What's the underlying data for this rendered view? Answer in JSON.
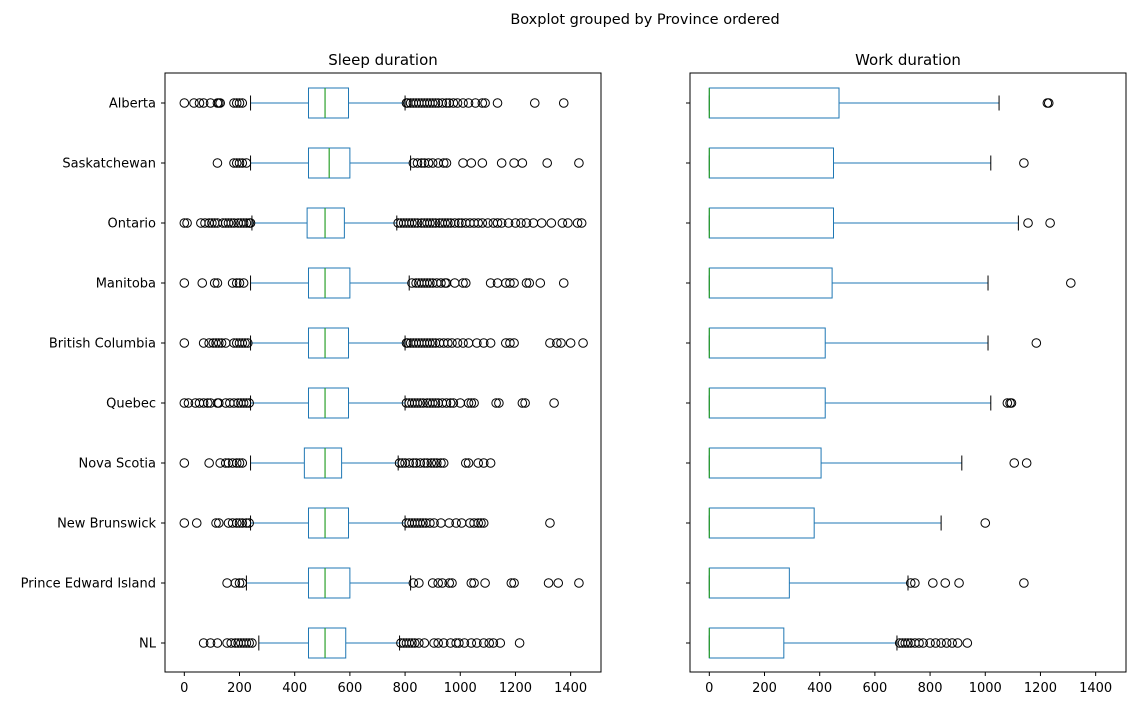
{
  "suptitle": "Boxplot grouped by Province ordered",
  "chart_data": [
    {
      "type": "boxplot",
      "orientation": "horizontal",
      "title": "Sleep duration",
      "xlim": [
        -70,
        1510
      ],
      "xticks": [
        0,
        200,
        400,
        600,
        800,
        1000,
        1200,
        1400
      ],
      "grid": false,
      "categories": [
        "Alberta",
        "Saskatchewan",
        "Ontario",
        "Manitoba",
        "British Columbia",
        "Quebec",
        "Nova Scotia",
        "New Brunswick",
        "Prince Edward Island",
        "NL"
      ],
      "boxes": [
        {
          "whislo": 240,
          "q1": 450,
          "med": 510,
          "q3": 595,
          "whishi": 800,
          "fliers": [
            0,
            35,
            55,
            70,
            95,
            120,
            125,
            130,
            180,
            190,
            200,
            210,
            805,
            810,
            820,
            830,
            840,
            850,
            860,
            870,
            880,
            890,
            900,
            910,
            920,
            935,
            950,
            960,
            975,
            990,
            1010,
            1030,
            1055,
            1080,
            1090,
            1135,
            1270,
            1375
          ]
        },
        {
          "whislo": 240,
          "q1": 450,
          "med": 525,
          "q3": 600,
          "whishi": 820,
          "fliers": [
            120,
            180,
            190,
            200,
            210,
            225,
            830,
            845,
            860,
            870,
            885,
            900,
            920,
            940,
            950,
            1010,
            1040,
            1080,
            1150,
            1195,
            1225,
            1315,
            1430
          ]
        },
        {
          "whislo": 245,
          "q1": 445,
          "med": 510,
          "q3": 580,
          "whishi": 770,
          "fliers": [
            0,
            10,
            60,
            75,
            90,
            100,
            110,
            120,
            140,
            150,
            160,
            170,
            180,
            195,
            205,
            215,
            225,
            235,
            240,
            775,
            785,
            795,
            805,
            815,
            825,
            835,
            845,
            860,
            870,
            880,
            890,
            900,
            910,
            925,
            935,
            945,
            955,
            965,
            980,
            995,
            1005,
            1020,
            1035,
            1050,
            1065,
            1080,
            1100,
            1120,
            1135,
            1150,
            1175,
            1200,
            1220,
            1240,
            1265,
            1295,
            1330,
            1370,
            1390,
            1425,
            1440
          ]
        },
        {
          "whislo": 240,
          "q1": 450,
          "med": 510,
          "q3": 600,
          "whishi": 815,
          "fliers": [
            0,
            65,
            110,
            120,
            175,
            190,
            200,
            215,
            825,
            840,
            850,
            860,
            870,
            880,
            890,
            900,
            915,
            930,
            945,
            950,
            980,
            1010,
            1020,
            1110,
            1135,
            1165,
            1180,
            1195,
            1240,
            1250,
            1290,
            1375
          ]
        },
        {
          "whislo": 240,
          "q1": 450,
          "med": 510,
          "q3": 595,
          "whishi": 800,
          "fliers": [
            0,
            70,
            90,
            105,
            115,
            125,
            135,
            150,
            180,
            190,
            200,
            210,
            220,
            230,
            805,
            810,
            820,
            830,
            840,
            850,
            860,
            870,
            880,
            890,
            900,
            910,
            925,
            940,
            955,
            970,
            990,
            1010,
            1030,
            1060,
            1085,
            1110,
            1165,
            1180,
            1195,
            1325,
            1350,
            1365,
            1400,
            1445
          ]
        },
        {
          "whislo": 240,
          "q1": 450,
          "med": 510,
          "q3": 595,
          "whishi": 800,
          "fliers": [
            0,
            15,
            40,
            55,
            70,
            85,
            95,
            120,
            125,
            150,
            165,
            180,
            195,
            205,
            215,
            225,
            235,
            805,
            815,
            825,
            835,
            845,
            855,
            865,
            880,
            890,
            900,
            910,
            920,
            935,
            950,
            965,
            975,
            1000,
            1030,
            1040,
            1050,
            1130,
            1140,
            1225,
            1235,
            1340
          ]
        },
        {
          "whislo": 240,
          "q1": 435,
          "med": 510,
          "q3": 570,
          "whishi": 775,
          "fliers": [
            0,
            90,
            130,
            150,
            160,
            175,
            190,
            200,
            210,
            780,
            790,
            800,
            815,
            830,
            840,
            855,
            870,
            880,
            895,
            905,
            915,
            930,
            940,
            1020,
            1030,
            1065,
            1085,
            1110
          ]
        },
        {
          "whislo": 240,
          "q1": 450,
          "med": 510,
          "q3": 595,
          "whishi": 800,
          "fliers": [
            0,
            45,
            115,
            125,
            160,
            175,
            190,
            200,
            210,
            225,
            235,
            805,
            815,
            825,
            835,
            845,
            855,
            865,
            875,
            890,
            905,
            930,
            960,
            985,
            1005,
            1035,
            1050,
            1065,
            1075,
            1085,
            1325
          ]
        },
        {
          "whislo": 225,
          "q1": 450,
          "med": 510,
          "q3": 600,
          "whishi": 820,
          "fliers": [
            155,
            185,
            200,
            210,
            830,
            850,
            900,
            920,
            935,
            960,
            970,
            1040,
            1050,
            1090,
            1185,
            1195,
            1320,
            1355,
            1430
          ]
        },
        {
          "whislo": 270,
          "q1": 450,
          "med": 510,
          "q3": 585,
          "whishi": 780,
          "fliers": [
            70,
            95,
            120,
            155,
            170,
            185,
            195,
            205,
            215,
            225,
            235,
            245,
            785,
            795,
            805,
            815,
            825,
            835,
            850,
            870,
            905,
            920,
            940,
            965,
            985,
            995,
            1015,
            1040,
            1060,
            1085,
            1105,
            1120,
            1145,
            1215
          ]
        }
      ]
    },
    {
      "type": "boxplot",
      "orientation": "horizontal",
      "title": "Work duration",
      "xlim": [
        -70,
        1510
      ],
      "xticks": [
        0,
        200,
        400,
        600,
        800,
        1000,
        1200,
        1400
      ],
      "grid": false,
      "categories": [
        "Alberta",
        "Saskatchewan",
        "Ontario",
        "Manitoba",
        "British Columbia",
        "Quebec",
        "Nova Scotia",
        "New Brunswick",
        "Prince Edward Island",
        "NL"
      ],
      "boxes": [
        {
          "whislo": 0,
          "q1": 0,
          "med": 0,
          "q3": 470,
          "whishi": 1050,
          "fliers": [
            1225,
            1230
          ]
        },
        {
          "whislo": 0,
          "q1": 0,
          "med": 0,
          "q3": 450,
          "whishi": 1020,
          "fliers": [
            1140
          ]
        },
        {
          "whislo": 0,
          "q1": 0,
          "med": 0,
          "q3": 450,
          "whishi": 1120,
          "fliers": [
            1155,
            1235
          ]
        },
        {
          "whislo": 0,
          "q1": 0,
          "med": 0,
          "q3": 445,
          "whishi": 1010,
          "fliers": [
            1310
          ]
        },
        {
          "whislo": 0,
          "q1": 0,
          "med": 0,
          "q3": 420,
          "whishi": 1010,
          "fliers": [
            1185
          ]
        },
        {
          "whislo": 0,
          "q1": 0,
          "med": 0,
          "q3": 420,
          "whishi": 1020,
          "fliers": [
            1080,
            1090,
            1095
          ]
        },
        {
          "whislo": 0,
          "q1": 0,
          "med": 0,
          "q3": 405,
          "whishi": 915,
          "fliers": [
            1105,
            1150
          ]
        },
        {
          "whislo": 0,
          "q1": 0,
          "med": 0,
          "q3": 380,
          "whishi": 840,
          "fliers": [
            1000
          ]
        },
        {
          "whislo": 0,
          "q1": 0,
          "med": 0,
          "q3": 290,
          "whishi": 720,
          "fliers": [
            730,
            745,
            810,
            855,
            905,
            1140
          ]
        },
        {
          "whislo": 0,
          "q1": 0,
          "med": 0,
          "q3": 270,
          "whishi": 680,
          "fliers": [
            690,
            700,
            710,
            720,
            730,
            745,
            760,
            775,
            800,
            820,
            840,
            860,
            880,
            900,
            935
          ]
        }
      ]
    }
  ]
}
